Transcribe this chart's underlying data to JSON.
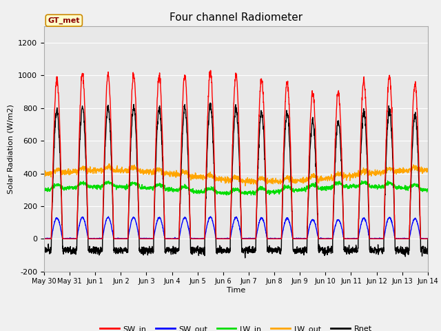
{
  "title": "Four channel Radiometer",
  "xlabel": "Time",
  "ylabel": "Solar Radiation (W/m2)",
  "ylim": [
    -200,
    1300
  ],
  "yticks": [
    -200,
    0,
    200,
    400,
    600,
    800,
    1000,
    1200
  ],
  "legend_label": "GT_met",
  "fig_bg_color": "#f0f0f0",
  "plot_bg_color": "#e8e8e8",
  "series": {
    "SW_in": {
      "color": "#ff0000",
      "lw": 1.0
    },
    "SW_out": {
      "color": "#0000ff",
      "lw": 1.0
    },
    "LW_in": {
      "color": "#00dd00",
      "lw": 1.0
    },
    "LW_out": {
      "color": "#ffa500",
      "lw": 1.0
    },
    "Rnet": {
      "color": "#000000",
      "lw": 1.0
    }
  },
  "x_tick_labels": [
    "May 30",
    "May 31",
    "Jun 1",
    "Jun 2",
    "Jun 3",
    "Jun 4",
    "Jun 5",
    "Jun 6",
    "Jun 7",
    "Jun 8",
    "Jun 9",
    "Jun 10",
    "Jun 11",
    "Jun 12",
    "Jun 13",
    "Jun 14"
  ],
  "num_days": 15,
  "pts_per_day": 144,
  "sw_in_peaks": [
    975,
    1005,
    1005,
    1005,
    1000,
    1000,
    1025,
    1000,
    975,
    960,
    895,
    895,
    970,
    995,
    950
  ],
  "rnet_night": -70,
  "rnet_day_scale": 800
}
